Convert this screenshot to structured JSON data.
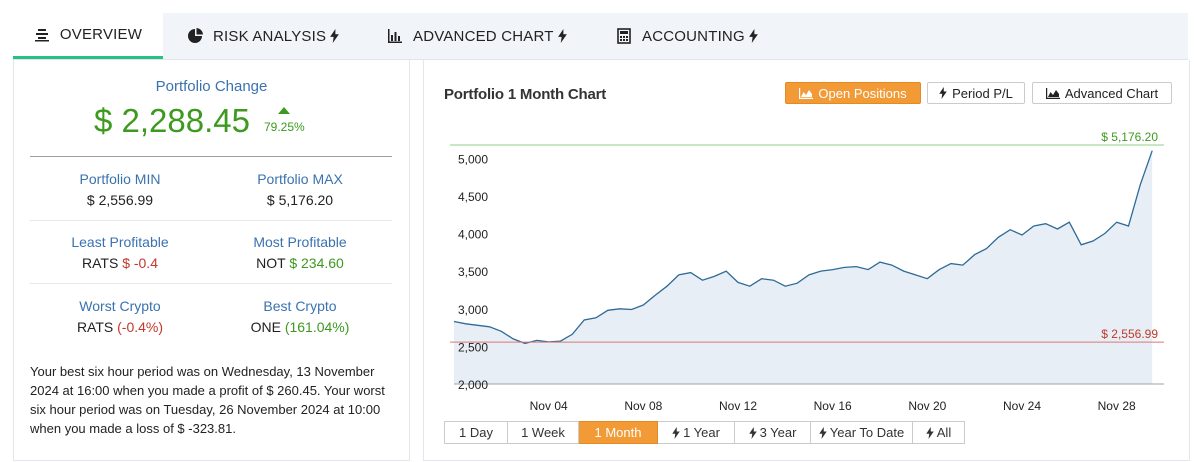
{
  "tabs": [
    {
      "label": "OVERVIEW",
      "icon": "list-icon"
    },
    {
      "label": "RISK ANALYSIS",
      "icon": "pie-chart-icon"
    },
    {
      "label": "ADVANCED CHART",
      "icon": "bar-chart-icon"
    },
    {
      "label": "ACCOUNTING",
      "icon": "calculator-icon"
    }
  ],
  "overview": {
    "change_title": "Portfolio Change",
    "change_value": "$ 2,288.45",
    "change_pct": "79.25%",
    "min_label": "Portfolio MIN",
    "min_value": "$ 2,556.99",
    "max_label": "Portfolio MAX",
    "max_value": "$ 5,176.20",
    "least_label": "Least Profitable",
    "least_symbol": "RATS",
    "least_value": "$ -0.4",
    "most_label": "Most Profitable",
    "most_symbol": "NOT",
    "most_value": "$ 234.60",
    "worst_label": "Worst Crypto",
    "worst_symbol": "RATS",
    "worst_value": "(-0.4%)",
    "best_label": "Best Crypto",
    "best_symbol": "ONE",
    "best_value": "(161.04%)",
    "summary": "Your best six hour period was on Wednesday, 13 November 2024 at 16:00 when you made a profit of $ 260.45. Your worst six hour period was on Tuesday, 26 November 2024 at 10:00 when you made a loss of $ -323.81."
  },
  "chart_panel": {
    "title": "Portfolio 1 Month Chart",
    "buttons": {
      "open_positions": "Open Positions",
      "period_pl": "Period P/L",
      "advanced_chart": "Advanced Chart"
    },
    "periods": [
      "1 Day",
      "1 Week",
      "1 Month",
      "1 Year",
      "3 Year",
      "Year To Date",
      "All"
    ],
    "active_period": "1 Month"
  },
  "colors": {
    "accent": "#f29a36",
    "positive": "#3d9a1e",
    "negative": "#c0392b",
    "line": "#2f6a97",
    "tab_active": "#26c281"
  },
  "chart_data": {
    "type": "area",
    "title": "Portfolio 1 Month Chart",
    "x_ticks": [
      "Nov 04",
      "Nov 08",
      "Nov 12",
      "Nov 16",
      "Nov 20",
      "Nov 24",
      "Nov 28"
    ],
    "y_ticks": [
      "5,000",
      "4,500",
      "4,000",
      "3,500",
      "3,000",
      "2,500",
      "2,000"
    ],
    "ylim": [
      2000,
      5000
    ],
    "xlim": [
      0,
      30
    ],
    "max_line": {
      "value": 5176.2,
      "label": "$ 5,176.20"
    },
    "min_line": {
      "value": 2556.99,
      "label": "$ 2,556.99"
    },
    "x": [
      0,
      0.5,
      1,
      1.5,
      2,
      2.5,
      3,
      3.5,
      4,
      4.5,
      5,
      5.5,
      6,
      6.5,
      7,
      7.5,
      8,
      8.5,
      9,
      9.5,
      10,
      10.5,
      11,
      11.5,
      12,
      12.5,
      13,
      13.5,
      14,
      14.5,
      15,
      15.5,
      16,
      16.5,
      17,
      17.5,
      18,
      18.5,
      19,
      19.5,
      20,
      20.5,
      21,
      21.5,
      22,
      22.5,
      23,
      23.5,
      24,
      24.5,
      25,
      25.5,
      26,
      26.5,
      27,
      27.5,
      28,
      28.5,
      29,
      29.5
    ],
    "values": [
      2830,
      2800,
      2780,
      2760,
      2700,
      2600,
      2540,
      2580,
      2560,
      2570,
      2660,
      2850,
      2880,
      2980,
      3000,
      2990,
      3050,
      3180,
      3300,
      3450,
      3480,
      3380,
      3430,
      3500,
      3350,
      3300,
      3400,
      3380,
      3300,
      3340,
      3450,
      3500,
      3520,
      3550,
      3560,
      3520,
      3620,
      3580,
      3500,
      3450,
      3400,
      3520,
      3600,
      3580,
      3720,
      3800,
      3950,
      4050,
      3980,
      4100,
      4130,
      4060,
      4150,
      3850,
      3900,
      4000,
      4150,
      4100,
      4650,
      5100
    ]
  }
}
